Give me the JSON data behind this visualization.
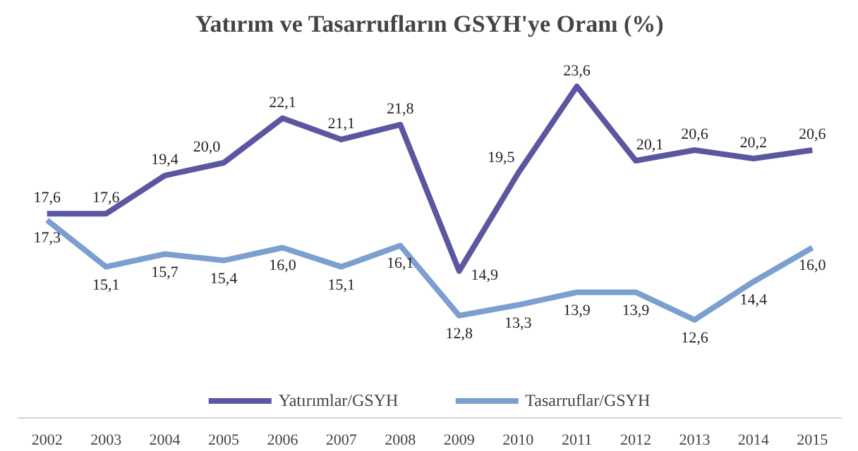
{
  "chart_data": {
    "type": "line",
    "title": "Yatırım ve Tasarrufların GSYH'ye Oranı (%)",
    "categories": [
      "2002",
      "2003",
      "2004",
      "2005",
      "2006",
      "2007",
      "2008",
      "2009",
      "2010",
      "2011",
      "2012",
      "2013",
      "2014",
      "2015"
    ],
    "series": [
      {
        "name": "Yatırımlar/GSYH",
        "color": "#5b56a0",
        "values": [
          17.6,
          17.6,
          19.4,
          20.0,
          22.1,
          21.1,
          21.8,
          14.9,
          19.5,
          23.6,
          20.1,
          20.6,
          20.2,
          20.6
        ],
        "value_labels": [
          "17,6",
          "17,6",
          "19,4",
          "20,0",
          "22,1",
          "21,1",
          "21,8",
          "14,9",
          "19,5",
          "23,6",
          "20,1",
          "20,6",
          "20,2",
          "20,6"
        ]
      },
      {
        "name": "Tasarruflar/GSYH",
        "color": "#7b9fcf",
        "values": [
          17.3,
          15.1,
          15.7,
          15.4,
          16.0,
          15.1,
          16.1,
          12.8,
          13.3,
          13.9,
          13.9,
          12.6,
          14.4,
          16.0
        ],
        "value_labels": [
          "17,3",
          "15,1",
          "15,7",
          "15,4",
          "16,0",
          "15,1",
          "16,1",
          "12,8",
          "13,3",
          "13,9",
          "13,9",
          "12,6",
          "14,4",
          "16,0"
        ]
      }
    ],
    "legend": "bottom",
    "grid": false,
    "marker": "none",
    "line_style": "solid"
  }
}
